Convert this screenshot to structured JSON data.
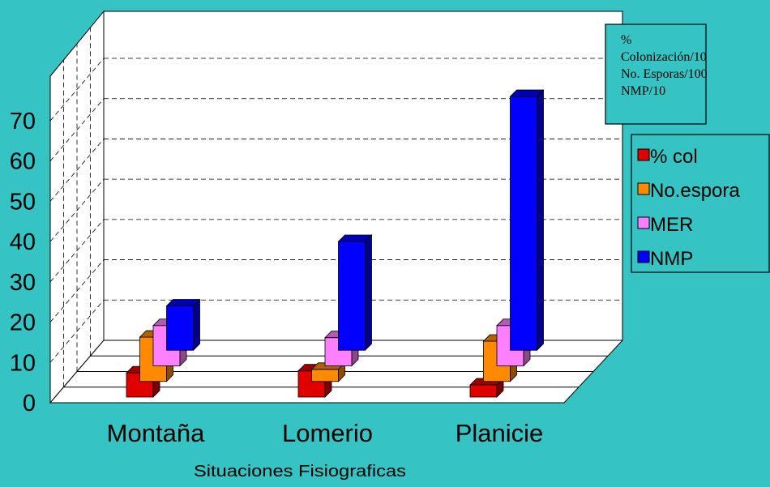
{
  "chart_data": {
    "type": "bar",
    "title": "",
    "xlabel": "Situaciones Fisiograficas",
    "ylabel": "",
    "ylim": [
      0,
      70
    ],
    "yticks": [
      "0",
      "10",
      "20",
      "30",
      "40",
      "50",
      "60",
      "70"
    ],
    "categories": [
      "Montaña",
      "Lomerio",
      "Planicie"
    ],
    "series": [
      {
        "name": "% col",
        "values": [
          6,
          6.5,
          3
        ],
        "color": "#e00000"
      },
      {
        "name": "No.espora",
        "values": [
          11,
          3,
          10
        ],
        "color": "#ff8a00"
      },
      {
        "name": "MER",
        "values": [
          10,
          7,
          10
        ],
        "color": "#ff80ff"
      },
      {
        "name": "NMP",
        "values": [
          11,
          27,
          63
        ],
        "color": "#0000ff"
      }
    ],
    "grid": true,
    "view": "3d",
    "legend_position": "right",
    "note_lines": [
      "%",
      "Colonización/10",
      "No. Esporas/100",
      "NMP/10"
    ]
  }
}
